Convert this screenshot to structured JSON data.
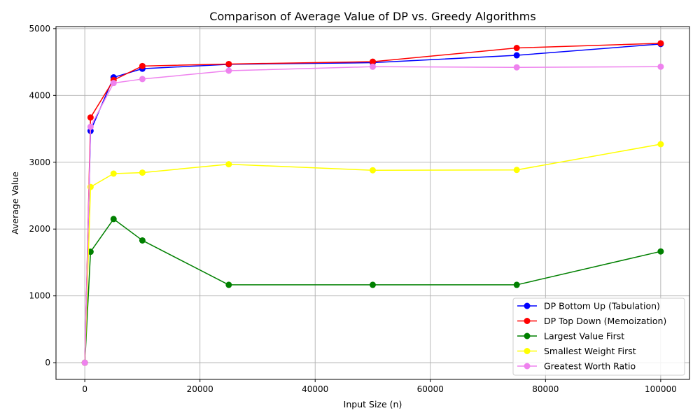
{
  "chart_data": {
    "type": "line",
    "title": "Comparison of Average Value of DP vs. Greedy Algorithms",
    "xlabel": "Input Size (n)",
    "ylabel": "Average Value",
    "x": [
      10,
      1000,
      5000,
      10000,
      25000,
      50000,
      75000,
      100000
    ],
    "xlim": [
      -5000,
      105000
    ],
    "ylim": [
      -250,
      5030
    ],
    "xticks": [
      0,
      20000,
      40000,
      60000,
      80000,
      100000
    ],
    "yticks": [
      0,
      1000,
      2000,
      3000,
      4000,
      5000
    ],
    "grid": true,
    "legend_position": "bottom-right",
    "series": [
      {
        "name": "DP Bottom Up (Tabulation)",
        "color": "#0000ff",
        "values": [
          0,
          3470,
          4270,
          4400,
          4465,
          4490,
          4600,
          4770
        ]
      },
      {
        "name": "DP Top Down (Memoization)",
        "color": "#ff0000",
        "values": [
          0,
          3670,
          4230,
          4440,
          4470,
          4505,
          4710,
          4780
        ]
      },
      {
        "name": "Largest Value First",
        "color": "#008000",
        "values": [
          0,
          1660,
          2150,
          1830,
          1165,
          1165,
          1165,
          1665
        ]
      },
      {
        "name": "Smallest Weight First",
        "color": "#ffff00",
        "values": [
          0,
          2630,
          2830,
          2845,
          2970,
          2880,
          2885,
          3270
        ]
      },
      {
        "name": "Greatest Worth Ratio",
        "color": "#ee82ee",
        "values": [
          0,
          3530,
          4185,
          4245,
          4370,
          4430,
          4420,
          4430
        ]
      }
    ]
  }
}
